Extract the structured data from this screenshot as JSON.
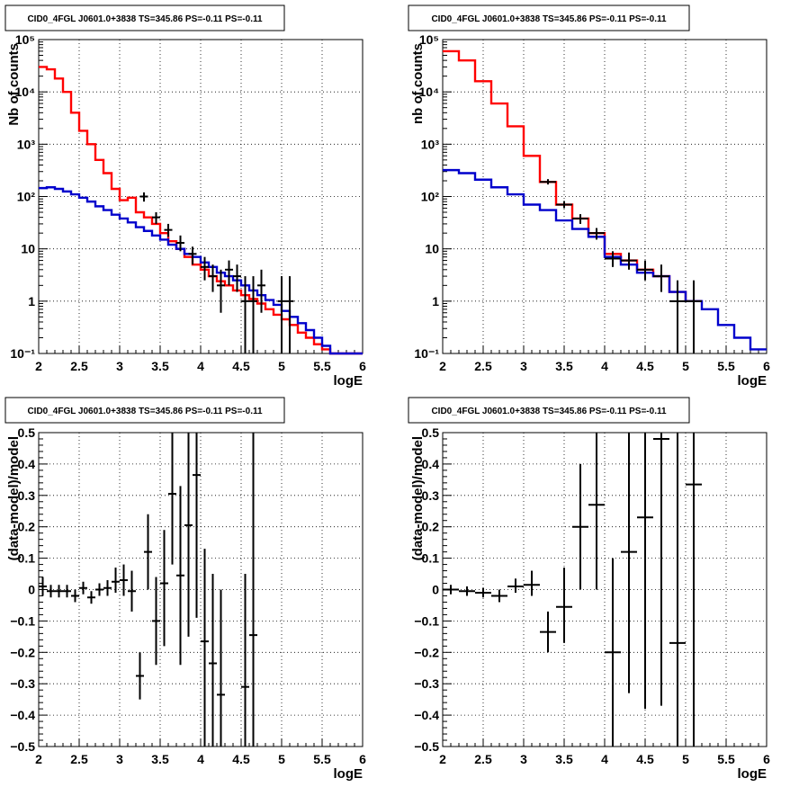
{
  "chart_data": [
    {
      "id": "top-left",
      "type": "histogram",
      "title": "CID0_4FGL J0601.0+3838 TS=345.86 PS=-0.11 PS=-0.11",
      "xlabel": "logE",
      "ylabel": "Nb of counts",
      "xlim": [
        2,
        6
      ],
      "ylim": [
        0.1,
        100000
      ],
      "yscale": "log",
      "grid": true,
      "xticks": [
        "2",
        "2.5",
        "3",
        "3.5",
        "4",
        "4.5",
        "5",
        "5.5",
        "6"
      ],
      "yticks": [
        "10⁻¹",
        "1",
        "10",
        "10²",
        "10³",
        "10⁴",
        "10⁵"
      ],
      "series": [
        {
          "color": "#ff0000",
          "kind": "step",
          "edges": [
            2.0,
            2.1,
            2.2,
            2.3,
            2.4,
            2.5,
            2.6,
            2.7,
            2.8,
            2.9,
            3.0,
            3.1,
            3.2,
            3.3,
            3.4,
            3.5,
            3.6,
            3.7,
            3.8,
            3.9,
            4.0,
            4.1,
            4.2,
            4.3,
            4.4,
            4.5,
            4.6,
            4.7,
            4.8,
            4.9,
            5.0,
            5.1,
            5.2,
            5.3,
            5.4,
            5.5,
            5.6,
            5.7,
            5.8,
            5.9,
            6.0
          ],
          "values": [
            30000,
            27000,
            18000,
            10000,
            4000,
            1800,
            1000,
            500,
            280,
            140,
            85,
            95,
            50,
            40,
            30,
            20,
            14,
            10,
            7,
            5,
            4,
            3,
            2.4,
            2,
            1.6,
            1.3,
            1.1,
            0.9,
            0.7,
            0.55,
            0.45,
            0.35,
            0.25,
            0.2,
            0.15,
            0.12,
            0.1,
            0.1,
            0.1,
            0.1
          ]
        },
        {
          "color": "#0000cc",
          "kind": "step",
          "edges": [
            2.0,
            2.1,
            2.2,
            2.3,
            2.4,
            2.5,
            2.6,
            2.7,
            2.8,
            2.9,
            3.0,
            3.1,
            3.2,
            3.3,
            3.4,
            3.5,
            3.6,
            3.7,
            3.8,
            3.9,
            4.0,
            4.1,
            4.2,
            4.3,
            4.4,
            4.5,
            4.6,
            4.7,
            4.8,
            4.9,
            5.0,
            5.1,
            5.2,
            5.3,
            5.4,
            5.5,
            5.6,
            5.7,
            5.8,
            5.9,
            6.0
          ],
          "values": [
            145,
            150,
            140,
            125,
            110,
            95,
            80,
            65,
            55,
            45,
            38,
            32,
            26,
            22,
            18,
            15,
            12,
            10,
            8,
            7,
            5.5,
            4.5,
            3.5,
            3,
            2.5,
            2,
            1.6,
            1.3,
            1.05,
            0.85,
            0.65,
            0.5,
            0.38,
            0.28,
            0.2,
            0.14,
            0.1,
            0.1,
            0.1,
            0.1
          ]
        }
      ],
      "points": [
        {
          "x": 3.3,
          "y": 100,
          "lo": 80,
          "hi": 120
        },
        {
          "x": 3.45,
          "y": 40,
          "lo": 30,
          "hi": 50
        },
        {
          "x": 3.6,
          "y": 23,
          "lo": 17,
          "hi": 30
        },
        {
          "x": 3.75,
          "y": 13,
          "lo": 9,
          "hi": 18
        },
        {
          "x": 3.9,
          "y": 8,
          "lo": 5,
          "hi": 11
        },
        {
          "x": 4.05,
          "y": 4.5,
          "lo": 2.5,
          "hi": 7
        },
        {
          "x": 4.15,
          "y": 3,
          "lo": 1.5,
          "hi": 5
        },
        {
          "x": 4.25,
          "y": 2,
          "lo": 0.6,
          "hi": 4
        },
        {
          "x": 4.35,
          "y": 4,
          "lo": 2,
          "hi": 6
        },
        {
          "x": 4.45,
          "y": 3,
          "lo": 1.5,
          "hi": 5
        },
        {
          "x": 4.55,
          "y": 1,
          "lo": 0.1,
          "hi": 3
        },
        {
          "x": 4.65,
          "y": 1,
          "lo": 0.1,
          "hi": 3
        },
        {
          "x": 4.75,
          "y": 2,
          "lo": 0.6,
          "hi": 4
        },
        {
          "x": 5.0,
          "y": 1,
          "lo": 0.1,
          "hi": 3
        },
        {
          "x": 5.1,
          "y": 1,
          "lo": 0.1,
          "hi": 3
        }
      ]
    },
    {
      "id": "top-right",
      "type": "histogram",
      "title": "CID0_4FGL J0601.0+3838 TS=345.86 PS=-0.11 PS=-0.11",
      "xlabel": "logE",
      "ylabel": "nb of counts",
      "xlim": [
        2,
        6
      ],
      "ylim": [
        0.1,
        100000
      ],
      "yscale": "log",
      "grid": true,
      "xticks": [
        "2",
        "2.5",
        "3",
        "3.5",
        "4",
        "4.5",
        "5",
        "5.5",
        "6"
      ],
      "yticks": [
        "10⁻¹",
        "1",
        "10",
        "10²",
        "10³",
        "10⁴",
        "10⁵"
      ],
      "series": [
        {
          "color": "#ff0000",
          "kind": "step",
          "edges": [
            2.0,
            2.2,
            2.4,
            2.6,
            2.8,
            3.0,
            3.2,
            3.4,
            3.6,
            3.8,
            4.0,
            4.2,
            4.4,
            4.6,
            4.8,
            5.0,
            5.2
          ],
          "values": [
            60000,
            40000,
            16000,
            6000,
            2200,
            600,
            190,
            70,
            38,
            20,
            8,
            6,
            4,
            3,
            1.5,
            1.0
          ]
        },
        {
          "color": "#0000cc",
          "kind": "step",
          "edges": [
            2.0,
            2.2,
            2.4,
            2.6,
            2.8,
            3.0,
            3.2,
            3.4,
            3.6,
            3.8,
            4.0,
            4.2,
            4.4,
            4.6,
            4.8,
            5.0,
            5.2,
            5.4,
            5.6,
            5.8,
            6.0
          ],
          "values": [
            320,
            280,
            210,
            150,
            110,
            70,
            55,
            35,
            24,
            17,
            7,
            5,
            3.5,
            3,
            1.5,
            1,
            0.7,
            0.35,
            0.2,
            0.12
          ]
        }
      ],
      "points": [
        {
          "x": 3.3,
          "y": 190,
          "lo": 170,
          "hi": 215
        },
        {
          "x": 3.5,
          "y": 70,
          "lo": 60,
          "hi": 82
        },
        {
          "x": 3.7,
          "y": 38,
          "lo": 30,
          "hi": 46
        },
        {
          "x": 3.9,
          "y": 20,
          "lo": 15,
          "hi": 25
        },
        {
          "x": 4.1,
          "y": 6.5,
          "lo": 4.5,
          "hi": 9
        },
        {
          "x": 4.3,
          "y": 6,
          "lo": 4,
          "hi": 8.5
        },
        {
          "x": 4.5,
          "y": 4,
          "lo": 2.5,
          "hi": 6
        },
        {
          "x": 4.7,
          "y": 3,
          "lo": 1.5,
          "hi": 5
        },
        {
          "x": 4.9,
          "y": 1,
          "lo": 0.1,
          "hi": 2.5
        },
        {
          "x": 5.1,
          "y": 1,
          "lo": 0.1,
          "hi": 2.5
        }
      ]
    },
    {
      "id": "bottom-left",
      "type": "scatter",
      "title": "CID0_4FGL J0601.0+3838 TS=345.86 PS=-0.11 PS=-0.11",
      "xlabel": "logE",
      "ylabel": "(data-model)/model",
      "xlim": [
        2,
        6
      ],
      "ylim": [
        -0.5,
        0.5
      ],
      "grid": true,
      "xticks": [
        "2",
        "2.5",
        "3",
        "3.5",
        "4",
        "4.5",
        "5",
        "5.5",
        "6"
      ],
      "yticks": [
        "−0.5",
        "−0.4",
        "−0.3",
        "−0.2",
        "−0.1",
        "0",
        "0.1",
        "0.2",
        "0.3",
        "0.4",
        "0.5"
      ],
      "points": [
        {
          "x": 2.05,
          "y": 0.01,
          "lo": -0.02,
          "hi": 0.04
        },
        {
          "x": 2.15,
          "y": -0.005,
          "lo": -0.025,
          "hi": 0.015
        },
        {
          "x": 2.25,
          "y": -0.005,
          "lo": -0.025,
          "hi": 0.015
        },
        {
          "x": 2.35,
          "y": -0.005,
          "lo": -0.025,
          "hi": 0.015
        },
        {
          "x": 2.45,
          "y": -0.02,
          "lo": -0.04,
          "hi": 0.0
        },
        {
          "x": 2.55,
          "y": 0.005,
          "lo": -0.015,
          "hi": 0.025
        },
        {
          "x": 2.65,
          "y": -0.025,
          "lo": -0.045,
          "hi": -0.005
        },
        {
          "x": 2.75,
          "y": 0.0,
          "lo": -0.02,
          "hi": 0.02
        },
        {
          "x": 2.85,
          "y": 0.005,
          "lo": -0.02,
          "hi": 0.03
        },
        {
          "x": 2.95,
          "y": 0.025,
          "lo": -0.01,
          "hi": 0.07
        },
        {
          "x": 3.05,
          "y": 0.03,
          "lo": -0.02,
          "hi": 0.08
        },
        {
          "x": 3.15,
          "y": -0.005,
          "lo": -0.07,
          "hi": 0.06
        },
        {
          "x": 3.25,
          "y": -0.275,
          "lo": -0.35,
          "hi": -0.2
        },
        {
          "x": 3.35,
          "y": 0.12,
          "lo": 0.0,
          "hi": 0.24
        },
        {
          "x": 3.45,
          "y": -0.1,
          "lo": -0.24,
          "hi": 0.04
        },
        {
          "x": 3.55,
          "y": 0.02,
          "lo": -0.18,
          "hi": 0.19
        },
        {
          "x": 3.65,
          "y": 0.305,
          "lo": 0.08,
          "hi": 0.5
        },
        {
          "x": 3.75,
          "y": 0.045,
          "lo": -0.24,
          "hi": 0.33
        },
        {
          "x": 3.85,
          "y": 0.205,
          "lo": -0.15,
          "hi": 0.5
        },
        {
          "x": 3.95,
          "y": 0.365,
          "lo": -0.09,
          "hi": 0.5
        },
        {
          "x": 4.05,
          "y": -0.165,
          "lo": -0.5,
          "hi": 0.13
        },
        {
          "x": 4.15,
          "y": -0.235,
          "lo": -0.5,
          "hi": 0.05
        },
        {
          "x": 4.25,
          "y": -0.335,
          "lo": -0.5,
          "hi": 0.0
        },
        {
          "x": 4.55,
          "y": -0.31,
          "lo": -0.5,
          "hi": 0.05
        },
        {
          "x": 4.65,
          "y": -0.145,
          "lo": -0.5,
          "hi": 0.5
        }
      ]
    },
    {
      "id": "bottom-right",
      "type": "scatter",
      "title": "CID0_4FGL J0601.0+3838 TS=345.86 PS=-0.11 PS=-0.11",
      "xlabel": "logE",
      "ylabel": "(data-model)/model",
      "xlim": [
        2,
        6
      ],
      "ylim": [
        -0.5,
        0.5
      ],
      "grid": true,
      "xticks": [
        "2",
        "2.5",
        "3",
        "3.5",
        "4",
        "4.5",
        "5",
        "5.5",
        "6"
      ],
      "yticks": [
        "−0.5",
        "−0.4",
        "−0.3",
        "−0.2",
        "−0.1",
        "0",
        "0.1",
        "0.2",
        "0.3",
        "0.4",
        "0.5"
      ],
      "points": [
        {
          "x": 2.1,
          "y": 0.0,
          "lo": -0.015,
          "hi": 0.015
        },
        {
          "x": 2.3,
          "y": -0.005,
          "lo": -0.02,
          "hi": 0.01
        },
        {
          "x": 2.5,
          "y": -0.01,
          "lo": -0.025,
          "hi": 0.005
        },
        {
          "x": 2.7,
          "y": -0.02,
          "lo": -0.04,
          "hi": 0.0
        },
        {
          "x": 2.9,
          "y": 0.01,
          "lo": -0.01,
          "hi": 0.035
        },
        {
          "x": 3.1,
          "y": 0.015,
          "lo": -0.02,
          "hi": 0.06
        },
        {
          "x": 3.3,
          "y": -0.135,
          "lo": -0.2,
          "hi": -0.07
        },
        {
          "x": 3.5,
          "y": -0.055,
          "lo": -0.17,
          "hi": 0.07
        },
        {
          "x": 3.7,
          "y": 0.2,
          "lo": 0.0,
          "hi": 0.4
        },
        {
          "x": 3.9,
          "y": 0.27,
          "lo": 0.0,
          "hi": 0.5
        },
        {
          "x": 4.1,
          "y": -0.2,
          "lo": -0.5,
          "hi": 0.1
        },
        {
          "x": 4.3,
          "y": 0.12,
          "lo": -0.33,
          "hi": 0.5
        },
        {
          "x": 4.5,
          "y": 0.23,
          "lo": -0.38,
          "hi": 0.5
        },
        {
          "x": 4.7,
          "y": 0.48,
          "lo": -0.37,
          "hi": 0.5
        },
        {
          "x": 4.9,
          "y": -0.17,
          "lo": -0.5,
          "hi": 0.5
        },
        {
          "x": 5.1,
          "y": 0.335,
          "lo": -0.5,
          "hi": 0.5
        }
      ]
    }
  ]
}
